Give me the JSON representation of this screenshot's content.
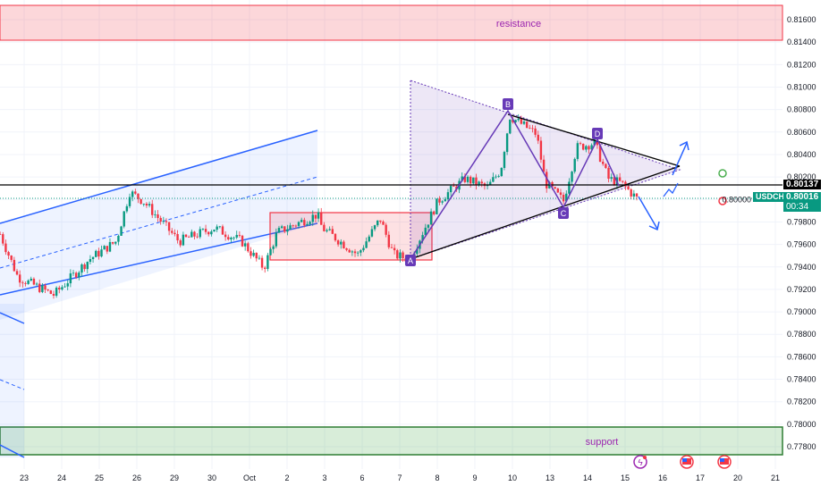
{
  "chart_data": {
    "type": "candlestick",
    "symbol": "USDCHF",
    "current_price": "0.80016",
    "countdown": "00:34",
    "horizontal_line_price": "0.80137",
    "ylim": [
      0.7762,
      0.8178
    ],
    "y_ticks": [
      "0.81600",
      "0.81400",
      "0.81200",
      "0.81000",
      "0.80800",
      "0.80600",
      "0.80400",
      "0.80200",
      "0.80000",
      "0.79800",
      "0.79600",
      "0.79400",
      "0.79200",
      "0.79000",
      "0.78800",
      "0.78600",
      "0.78400",
      "0.78200",
      "0.78000",
      "0.77800"
    ],
    "x_ticks": [
      "23",
      "24",
      "25",
      "26",
      "29",
      "30",
      "Oct",
      "2",
      "3",
      "6",
      "7",
      "8",
      "9",
      "10",
      "13",
      "14",
      "15",
      "16",
      "17",
      "20",
      "21"
    ],
    "price_path": [
      [
        -0.64,
        0.79692
      ],
      [
        -0.17,
        0.7931
      ],
      [
        0.79,
        0.79151
      ],
      [
        1.74,
        0.79469
      ],
      [
        2.45,
        0.79628
      ],
      [
        2.81,
        0.80066
      ],
      [
        3.17,
        0.79986
      ],
      [
        4.12,
        0.79628
      ],
      [
        5.07,
        0.79748
      ],
      [
        5.79,
        0.79628
      ],
      [
        6.38,
        0.7939
      ],
      [
        6.74,
        0.79708
      ],
      [
        7.81,
        0.79867
      ],
      [
        7.93,
        0.79748
      ],
      [
        8.88,
        0.79509
      ],
      [
        9.48,
        0.79827
      ],
      [
        9.83,
        0.79509
      ],
      [
        10.26,
        0.79469
      ],
      [
        11.02,
        0.79986
      ],
      [
        11.74,
        0.80185
      ],
      [
        12.33,
        0.80105
      ],
      [
        12.69,
        0.80264
      ],
      [
        12.93,
        0.80741
      ],
      [
        13.64,
        0.80582
      ],
      [
        13.88,
        0.80145
      ],
      [
        14.36,
        0.79986
      ],
      [
        14.71,
        0.80463
      ],
      [
        15.19,
        0.80503
      ],
      [
        15.55,
        0.80185
      ],
      [
        15.9,
        0.80145
      ],
      [
        16.38,
        0.79986
      ]
    ],
    "zones": {
      "resistance": {
        "label": "resistance",
        "from": 0.8142,
        "to": 0.8173
      },
      "support": {
        "label": "support",
        "from": 0.7772,
        "to": 0.7797
      }
    },
    "pattern_labels": [
      "A",
      "B",
      "C",
      "D"
    ],
    "colors": {
      "up": "#089981",
      "down": "#f23645",
      "pattern": "#673ab7",
      "channel": "#2962ff"
    }
  }
}
